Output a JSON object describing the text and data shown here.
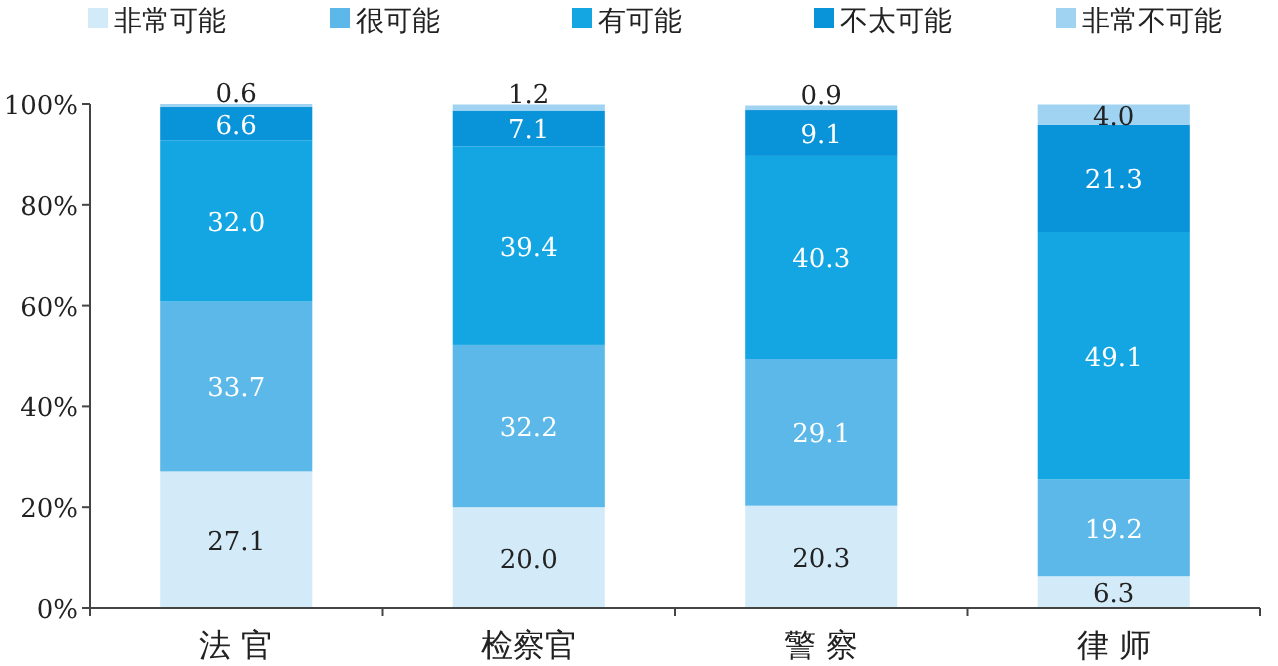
{
  "chart_data": {
    "type": "bar",
    "stacked": true,
    "legend": "top",
    "grid": false,
    "categories": [
      "法 官",
      "检察官",
      "警 察",
      "律 师"
    ],
    "ylim": [
      0,
      100
    ],
    "yticks": [
      {
        "value": 0,
        "label": "0%"
      },
      {
        "value": 20,
        "label": "20%"
      },
      {
        "value": 40,
        "label": "40%"
      },
      {
        "value": 60,
        "label": "60%"
      },
      {
        "value": 80,
        "label": "80%"
      },
      {
        "value": 100,
        "label": "100%"
      }
    ],
    "series": [
      {
        "name": "非常可能",
        "color": "#d3eaf8",
        "values": [
          27.1,
          20.0,
          20.3,
          6.3
        ],
        "value_labels": [
          "27.1",
          "20.0",
          "20.3",
          "6.3"
        ]
      },
      {
        "name": "很可能",
        "color": "#5bb8e8",
        "values": [
          33.7,
          32.2,
          29.1,
          19.2
        ],
        "value_labels": [
          "33.7",
          "32.2",
          "29.1",
          "19.2"
        ]
      },
      {
        "name": "有可能",
        "color": "#13a6e2",
        "values": [
          32.0,
          39.4,
          40.3,
          49.1
        ],
        "value_labels": [
          "32.0",
          "39.4",
          "40.3",
          "49.1"
        ]
      },
      {
        "name": "不太可能",
        "color": "#0993d9",
        "values": [
          6.6,
          7.1,
          9.1,
          21.3
        ],
        "value_labels": [
          "6.6",
          "7.1",
          "9.1",
          "21.3"
        ]
      },
      {
        "name": "非常不可能",
        "color": "#9fd3f1",
        "values": [
          0.6,
          1.2,
          0.9,
          4.0
        ],
        "value_labels": [
          "0.6",
          "1.2",
          "0.9",
          "4.0"
        ]
      }
    ]
  }
}
